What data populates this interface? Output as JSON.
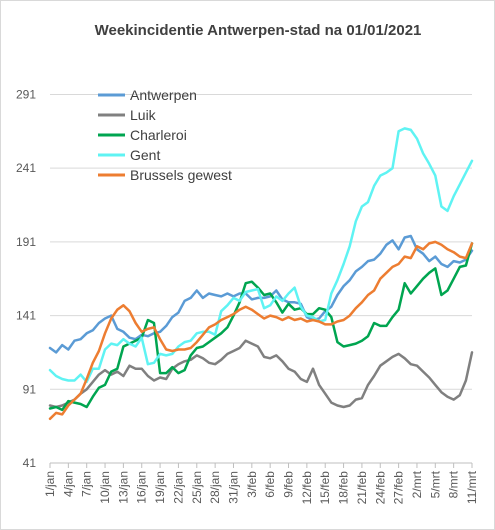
{
  "chart_data": {
    "type": "line",
    "title": "Weekincidentie  Antwerpen-stad na 01/01/2021",
    "xlabel": "",
    "ylabel": "",
    "ylim": [
      41,
      311
    ],
    "yticks": [
      41,
      91,
      141,
      191,
      241,
      291
    ],
    "grid": "horizontal",
    "legend_position": "top-left",
    "categories": [
      "1/jan",
      "2/jan",
      "3/jan",
      "4/jan",
      "5/jan",
      "6/jan",
      "7/jan",
      "8/jan",
      "9/jan",
      "10/jan",
      "11/jan",
      "12/jan",
      "13/jan",
      "14/jan",
      "15/jan",
      "16/jan",
      "17/jan",
      "18/jan",
      "19/jan",
      "20/jan",
      "21/jan",
      "22/jan",
      "23/jan",
      "24/jan",
      "25/jan",
      "26/jan",
      "27/jan",
      "28/jan",
      "29/jan",
      "30/jan",
      "31/jan",
      "1/feb",
      "2/feb",
      "3/feb",
      "4/feb",
      "5/feb",
      "6/feb",
      "7/feb",
      "8/feb",
      "9/feb",
      "10/feb",
      "11/feb",
      "12/feb",
      "13/feb",
      "14/feb",
      "15/feb",
      "16/feb",
      "17/feb",
      "18/feb",
      "19/feb",
      "20/feb",
      "21/feb",
      "22/feb",
      "23/feb",
      "24/feb",
      "25/feb",
      "26/feb",
      "27/feb",
      "28/feb",
      "1/mrt",
      "2/mrt",
      "3/mrt",
      "4/mrt",
      "5/mrt",
      "6/mrt",
      "7/mrt",
      "8/mrt",
      "9/mrt",
      "10/mrt",
      "11/mrt"
    ],
    "tick_labels": [
      "1/jan",
      "4/jan",
      "7/jan",
      "10/jan",
      "13/jan",
      "16/jan",
      "19/jan",
      "22/jan",
      "25/jan",
      "28/jan",
      "31/jan",
      "3/feb",
      "6/feb",
      "9/feb",
      "12/feb",
      "15/feb",
      "18/feb",
      "21/feb",
      "24/feb",
      "27/feb",
      "2/mrt",
      "5/mrt",
      "8/mrt",
      "11/mrt"
    ],
    "series": [
      {
        "name": "Antwerpen",
        "color": "#5b9bd5",
        "values": [
          119,
          116,
          121,
          118,
          124,
          125,
          129,
          131,
          136,
          139,
          141,
          132,
          130,
          126,
          125,
          128,
          127,
          129,
          130,
          134,
          140,
          143,
          151,
          153,
          158,
          153,
          156,
          155,
          154,
          156,
          154,
          156,
          156,
          152,
          153,
          153,
          154,
          158,
          152,
          150,
          150,
          149,
          140,
          138,
          139,
          144,
          147,
          155,
          161,
          165,
          171,
          174,
          178,
          179,
          183,
          189,
          192,
          186,
          194,
          195,
          186,
          183,
          178,
          181,
          176,
          174,
          178,
          177,
          179,
          185
        ]
      },
      {
        "name": "Luik",
        "color": "#808080",
        "values": [
          80,
          79,
          80,
          82,
          84,
          88,
          91,
          96,
          101,
          104,
          101,
          103,
          100,
          107,
          105,
          105,
          100,
          97,
          99,
          98,
          105,
          108,
          110,
          111,
          114,
          112,
          109,
          108,
          111,
          115,
          117,
          119,
          124,
          122,
          120,
          113,
          112,
          114,
          110,
          105,
          103,
          98,
          96,
          105,
          94,
          88,
          82,
          80,
          79,
          80,
          84,
          85,
          94,
          100,
          107,
          110,
          113,
          115,
          112,
          108,
          107,
          103,
          99,
          94,
          89,
          86,
          84,
          87,
          97,
          116
        ]
      },
      {
        "name": "Charleroi",
        "color": "#00a550",
        "values": [
          78,
          79,
          77,
          83,
          82,
          81,
          79,
          86,
          92,
          94,
          103,
          105,
          120,
          122,
          124,
          126,
          138,
          136,
          102,
          102,
          106,
          102,
          104,
          114,
          119,
          120,
          123,
          126,
          129,
          133,
          141,
          150,
          163,
          164,
          160,
          155,
          156,
          150,
          143,
          149,
          145,
          146,
          142,
          142,
          146,
          145,
          140,
          123,
          120,
          121,
          122,
          124,
          127,
          136,
          134,
          134,
          140,
          145,
          163,
          156,
          161,
          166,
          170,
          173,
          155,
          158,
          166,
          174,
          175,
          190
        ]
      },
      {
        "name": "Gent",
        "color": "#5ff3f3",
        "values": [
          104,
          100,
          98,
          97,
          97,
          101,
          96,
          105,
          105,
          118,
          122,
          121,
          125,
          122,
          120,
          126,
          108,
          109,
          115,
          114,
          115,
          120,
          123,
          124,
          129,
          130,
          130,
          128,
          144,
          148,
          153,
          151,
          157,
          158,
          159,
          146,
          148,
          154,
          151,
          156,
          160,
          147,
          141,
          140,
          137,
          138,
          156,
          165,
          176,
          188,
          205,
          215,
          218,
          229,
          236,
          238,
          241,
          266,
          268,
          267,
          261,
          251,
          244,
          236,
          215,
          212,
          222,
          230,
          238,
          246
        ]
      },
      {
        "name": "Brussels gewest",
        "color": "#ed7d31",
        "values": [
          71,
          75,
          74,
          80,
          84,
          88,
          98,
          109,
          117,
          129,
          139,
          145,
          148,
          144,
          136,
          130,
          132,
          133,
          125,
          118,
          117,
          118,
          118,
          119,
          123,
          128,
          133,
          135,
          138,
          140,
          142,
          145,
          147,
          145,
          142,
          139,
          141,
          140,
          138,
          140,
          138,
          139,
          137,
          138,
          137,
          135,
          135,
          137,
          138,
          141,
          146,
          150,
          155,
          158,
          166,
          170,
          174,
          176,
          181,
          180,
          188,
          186,
          190,
          191,
          189,
          186,
          184,
          181,
          180,
          190
        ]
      }
    ]
  }
}
